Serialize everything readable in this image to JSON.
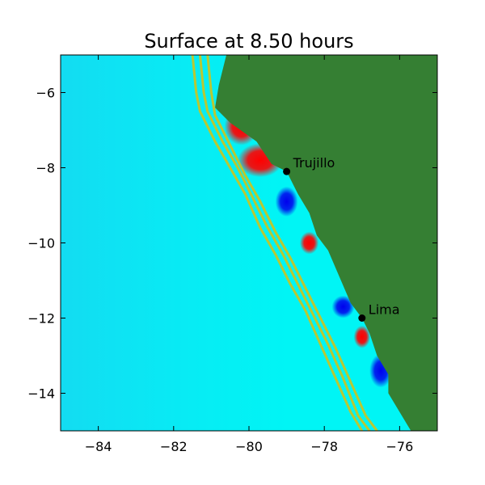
{
  "chart_data": {
    "type": "heatmap",
    "title": "Surface at 8.50 hours",
    "xlabel": "",
    "ylabel": "",
    "xlim": [
      -85,
      -75
    ],
    "ylim": [
      -15,
      -5
    ],
    "x_ticks": [
      -84,
      -82,
      -80,
      -78,
      -76
    ],
    "y_ticks": [
      -6,
      -8,
      -10,
      -12,
      -14
    ],
    "x_tick_labels": [
      "−84",
      "−82",
      "−80",
      "−78",
      "−76"
    ],
    "y_tick_labels": [
      "−6",
      "−8",
      "−10",
      "−12",
      "−14"
    ],
    "grid": false,
    "colors": {
      "land": "#357f33",
      "ocean": "#00f5f5",
      "ocean_far": "#13dcf2",
      "contour": "#b9c832",
      "elevation": "#ff0000",
      "depression": "#0000ee"
    },
    "locations": [
      {
        "name": "Trujillo",
        "lon": -79.0,
        "lat": -8.1
      },
      {
        "name": "Lima",
        "lon": -77.0,
        "lat": -12.0
      }
    ],
    "coastline": [
      [
        -80.6,
        -5.0
      ],
      [
        -80.8,
        -5.8
      ],
      [
        -80.9,
        -6.4
      ],
      [
        -80.5,
        -6.8
      ],
      [
        -79.8,
        -7.3
      ],
      [
        -79.4,
        -7.9
      ],
      [
        -79.0,
        -8.1
      ],
      [
        -78.7,
        -8.7
      ],
      [
        -78.4,
        -9.2
      ],
      [
        -78.2,
        -9.8
      ],
      [
        -77.9,
        -10.2
      ],
      [
        -77.6,
        -10.9
      ],
      [
        -77.3,
        -11.6
      ],
      [
        -77.0,
        -12.0
      ],
      [
        -76.8,
        -12.4
      ],
      [
        -76.6,
        -13.0
      ],
      [
        -76.3,
        -13.5
      ],
      [
        -76.3,
        -14.0
      ],
      [
        -76.0,
        -14.5
      ],
      [
        -75.7,
        -15.0
      ],
      [
        -75.0,
        -15.0
      ],
      [
        -75.0,
        -5.0
      ]
    ],
    "contour_lines": [
      [
        [
          -81.5,
          -5.0
        ],
        [
          -81.4,
          -6.0
        ],
        [
          -81.3,
          -6.5
        ],
        [
          -80.9,
          -7.3
        ],
        [
          -80.5,
          -8.0
        ],
        [
          -80.1,
          -8.7
        ],
        [
          -79.7,
          -9.6
        ],
        [
          -79.3,
          -10.3
        ],
        [
          -78.9,
          -11.1
        ],
        [
          -78.5,
          -11.8
        ],
        [
          -78.1,
          -12.7
        ],
        [
          -77.7,
          -13.6
        ],
        [
          -77.3,
          -14.5
        ],
        [
          -77.0,
          -15.0
        ]
      ],
      [
        [
          -81.3,
          -5.0
        ],
        [
          -81.2,
          -6.0
        ],
        [
          -81.1,
          -6.5
        ],
        [
          -80.7,
          -7.3
        ],
        [
          -80.3,
          -8.0
        ],
        [
          -79.9,
          -8.8
        ],
        [
          -79.5,
          -9.6
        ],
        [
          -79.1,
          -10.3
        ],
        [
          -78.7,
          -11.1
        ],
        [
          -78.3,
          -11.9
        ],
        [
          -77.9,
          -12.7
        ],
        [
          -77.5,
          -13.6
        ],
        [
          -77.1,
          -14.6
        ],
        [
          -76.8,
          -15.0
        ]
      ],
      [
        [
          -81.1,
          -5.0
        ],
        [
          -81.0,
          -6.0
        ],
        [
          -80.9,
          -6.6
        ],
        [
          -80.5,
          -7.4
        ],
        [
          -80.1,
          -8.2
        ],
        [
          -79.7,
          -8.9
        ],
        [
          -79.3,
          -9.7
        ],
        [
          -78.9,
          -10.4
        ],
        [
          -78.5,
          -11.2
        ],
        [
          -78.1,
          -12.0
        ],
        [
          -77.7,
          -12.8
        ],
        [
          -77.3,
          -13.7
        ],
        [
          -76.9,
          -14.6
        ],
        [
          -76.6,
          -15.0
        ]
      ]
    ],
    "anomalies": [
      {
        "kind": "elevation",
        "lon": -80.2,
        "lat": -6.9,
        "rx": 0.45,
        "ry": 0.5
      },
      {
        "kind": "elevation",
        "lon": -79.7,
        "lat": -7.8,
        "rx": 0.6,
        "ry": 0.45
      },
      {
        "kind": "depression",
        "lon": -79.0,
        "lat": -8.9,
        "rx": 0.3,
        "ry": 0.4
      },
      {
        "kind": "elevation",
        "lon": -78.4,
        "lat": -10.0,
        "rx": 0.25,
        "ry": 0.3
      },
      {
        "kind": "depression",
        "lon": -77.5,
        "lat": -11.7,
        "rx": 0.3,
        "ry": 0.3
      },
      {
        "kind": "elevation",
        "lon": -77.0,
        "lat": -12.5,
        "rx": 0.22,
        "ry": 0.3
      },
      {
        "kind": "depression",
        "lon": -76.5,
        "lat": -13.4,
        "rx": 0.3,
        "ry": 0.45
      }
    ]
  }
}
